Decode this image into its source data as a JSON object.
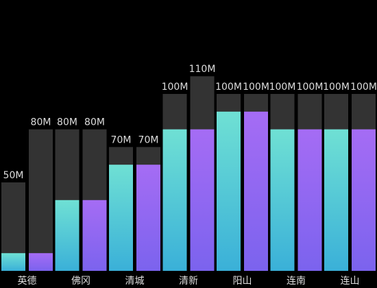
{
  "chart_data": {
    "type": "bar",
    "ylim": [
      0,
      120
    ],
    "unit_suffix": "M",
    "groups": [
      {
        "label": "英德",
        "bars": [
          {
            "capacity": 50,
            "value": 10,
            "style": "cyan"
          },
          {
            "capacity": 80,
            "value": 10,
            "style": "purple"
          }
        ]
      },
      {
        "label": "佛冈",
        "bars": [
          {
            "capacity": 80,
            "value": 40,
            "style": "cyan"
          },
          {
            "capacity": 80,
            "value": 40,
            "style": "purple"
          }
        ]
      },
      {
        "label": "清城",
        "bars": [
          {
            "capacity": 70,
            "value": 60,
            "style": "cyan"
          },
          {
            "capacity": 70,
            "value": 60,
            "style": "purple"
          }
        ]
      },
      {
        "label": "清新",
        "bars": [
          {
            "capacity": 100,
            "value": 80,
            "style": "cyan"
          },
          {
            "capacity": 110,
            "value": 80,
            "style": "purple"
          }
        ]
      },
      {
        "label": "阳山",
        "bars": [
          {
            "capacity": 100,
            "value": 90,
            "style": "cyan"
          },
          {
            "capacity": 100,
            "value": 90,
            "style": "purple"
          }
        ]
      },
      {
        "label": "连南",
        "bars": [
          {
            "capacity": 100,
            "value": 80,
            "style": "cyan"
          },
          {
            "capacity": 100,
            "value": 80,
            "style": "purple"
          }
        ]
      },
      {
        "label": "连山",
        "bars": [
          {
            "capacity": 100,
            "value": 80,
            "style": "cyan"
          },
          {
            "capacity": 100,
            "value": 80,
            "style": "purple"
          }
        ]
      }
    ]
  },
  "colors": {
    "background": "#000000",
    "track": "#333333",
    "cyan_top": "#6fe0d4",
    "cyan_bottom": "#3ab0d8",
    "purple_top": "#a56cf4",
    "purple_bottom": "#7b63ee",
    "label": "#dddddd"
  }
}
